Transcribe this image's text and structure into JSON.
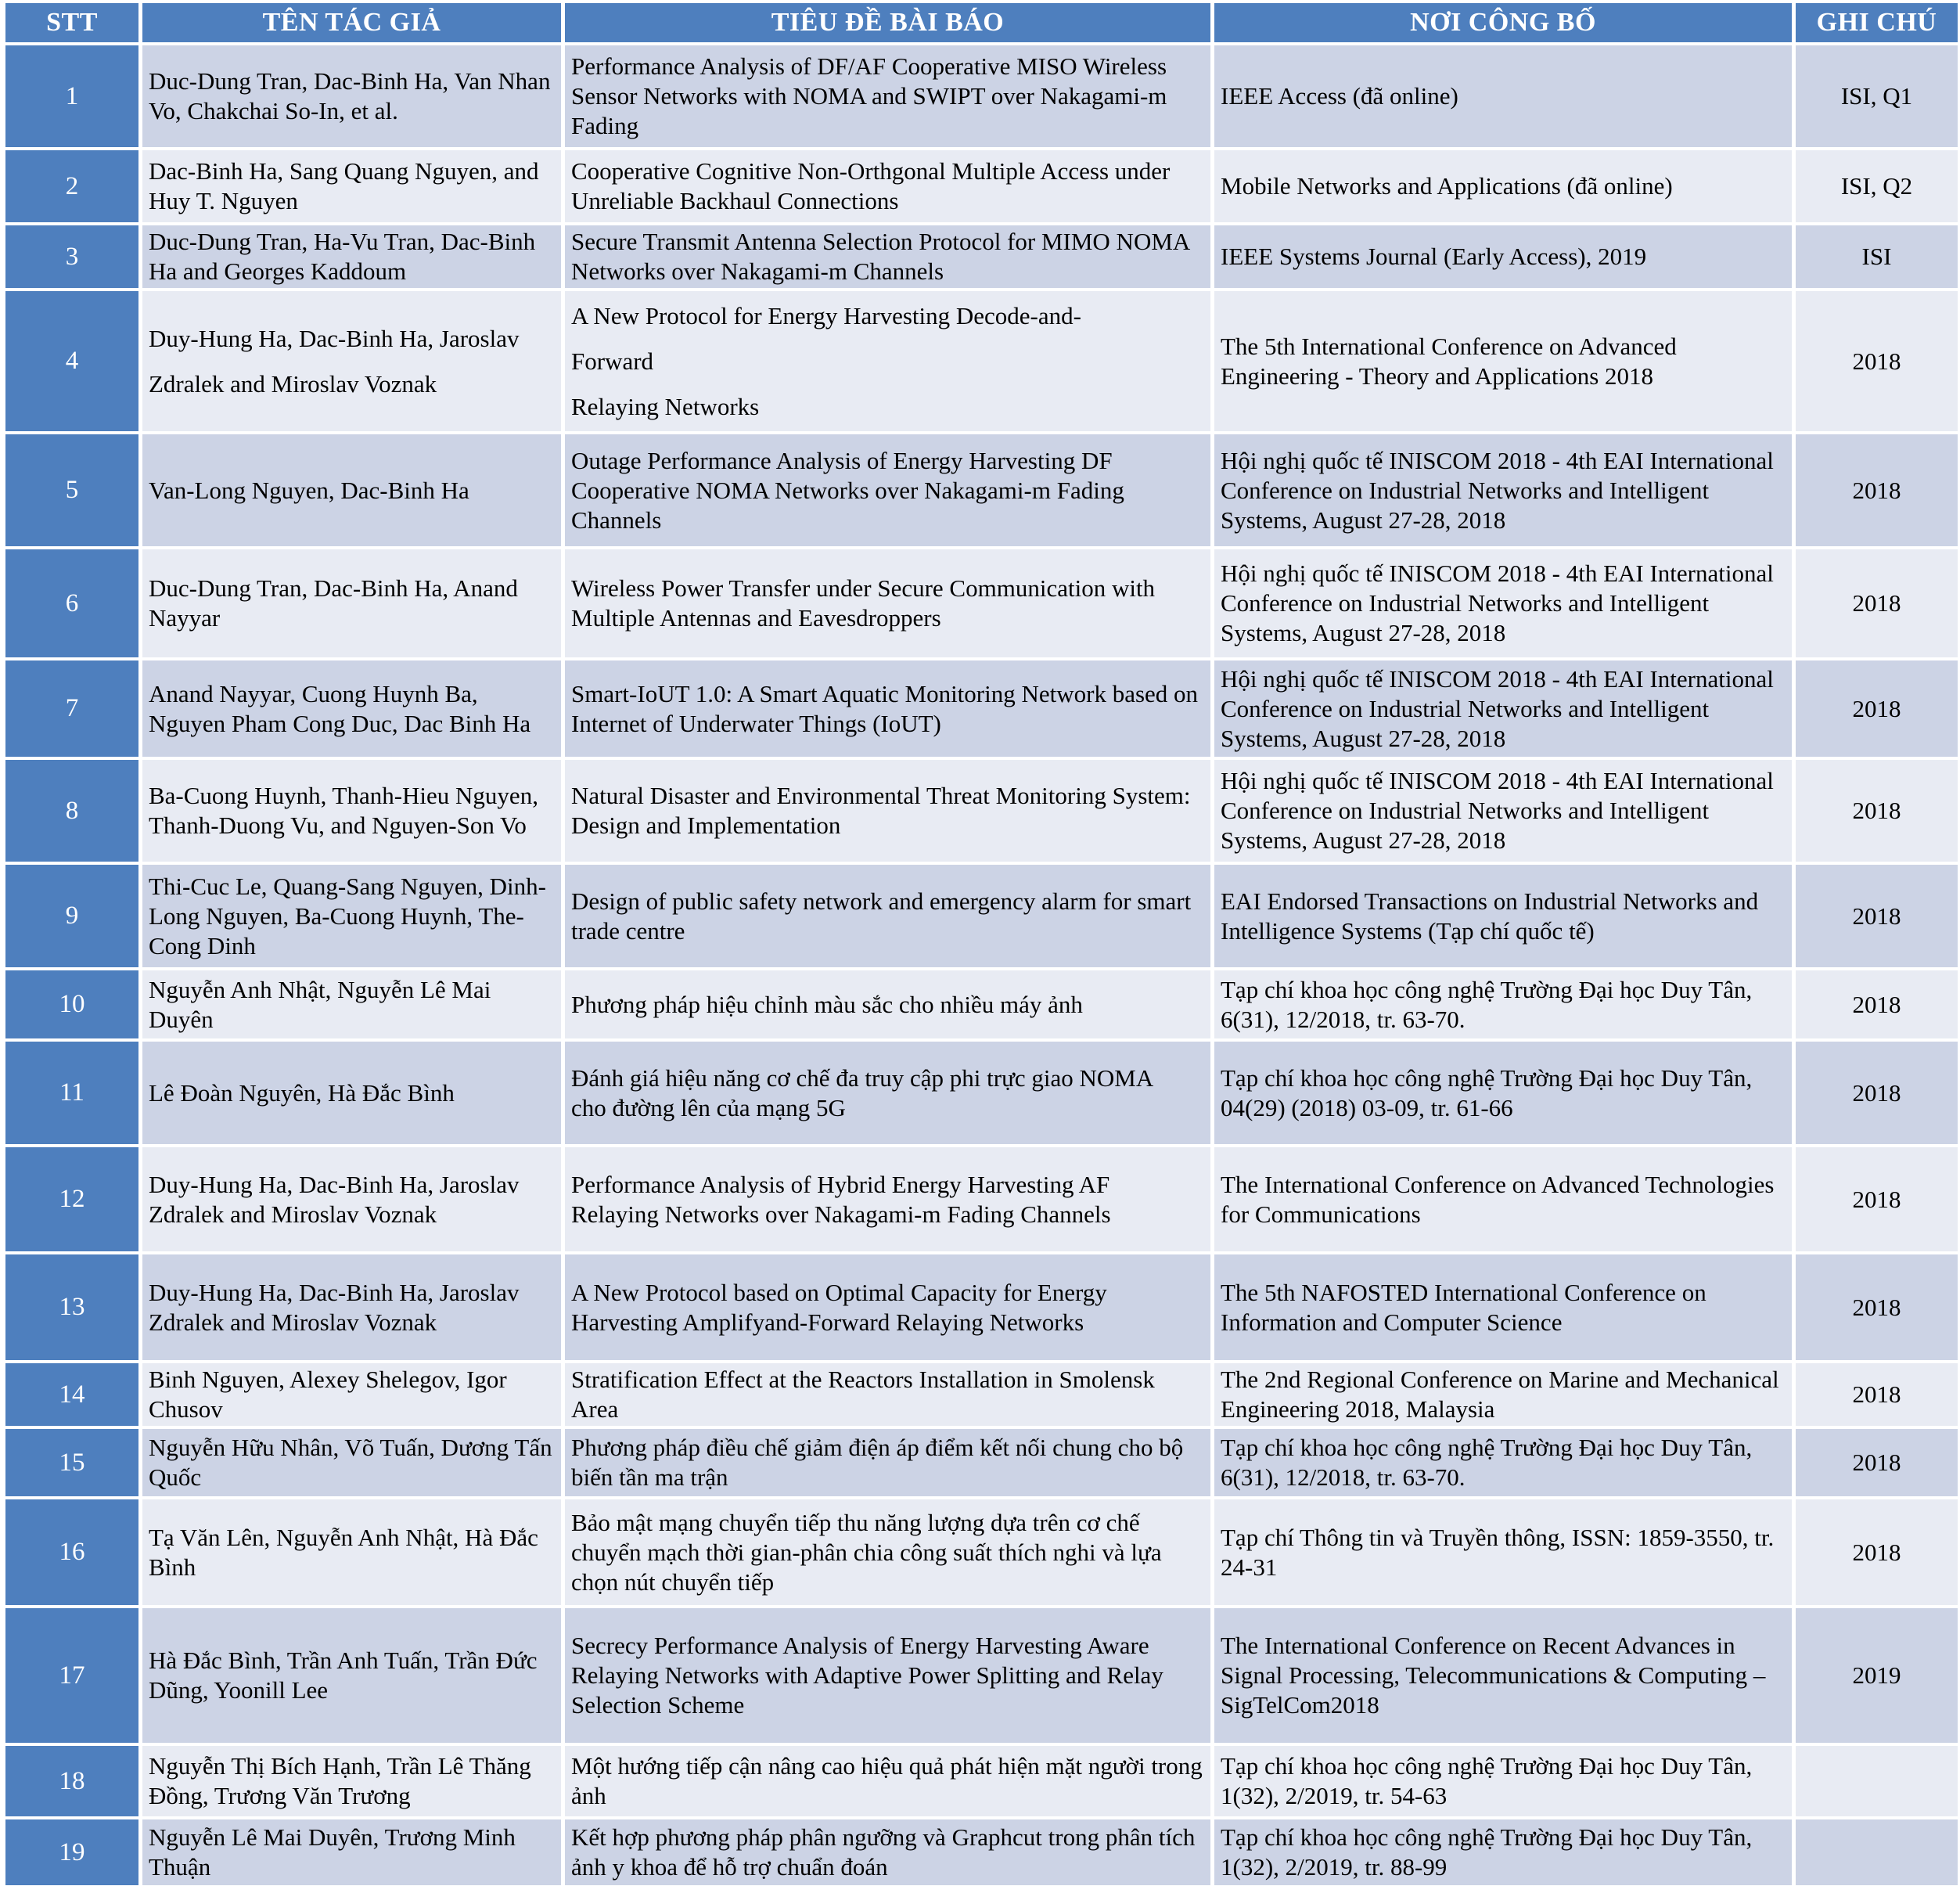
{
  "table": {
    "headers": {
      "stt": "STT",
      "authors": "TÊN TÁC GIẢ",
      "title": "TIÊU ĐỀ BÀI BÁO",
      "venue": "NƠI CÔNG BỐ",
      "note": "GHI CHÚ"
    },
    "rows": [
      {
        "stt": "1",
        "authors": "Duc-Dung Tran, Dac-Binh Ha, Van Nhan Vo, Chakchai So-In, et al.",
        "title": "Performance Analysis of DF/AF Cooperative MISO Wireless Sensor Networks with NOMA and SWIPT over Nakagami-m Fading",
        "venue": "IEEE Access (đã online)",
        "note": "ISI, Q1"
      },
      {
        "stt": "2",
        "authors": "Dac-Binh Ha, Sang Quang Nguyen, and Huy T. Nguyen",
        "title": "Cooperative Cognitive Non-Orthgonal Multiple Access under Unreliable Backhaul Connections",
        "venue": "Mobile Networks and Applications (đã online)",
        "note": "ISI, Q2"
      },
      {
        "stt": "3",
        "authors": "Duc-Dung Tran, Ha-Vu Tran, Dac-Binh Ha and Georges Kaddoum",
        "title": "Secure Transmit Antenna Selection Protocol for MIMO NOMA Networks over Nakagami-m Channels",
        "venue": "IEEE Systems Journal (Early Access), 2019",
        "note": "ISI"
      },
      {
        "stt": "4",
        "authors": "Duy-Hung Ha, Dac-Binh Ha, Jaroslav Zdralek and Miroslav Voznak",
        "title": "A New Protocol for Energy Harvesting Decode-and-\nForward\nRelaying Networks",
        "venue": "The 5th International Conference on Advanced Engineering - Theory and Applications 2018",
        "note": "2018"
      },
      {
        "stt": "5",
        "authors": "Van-Long Nguyen, Dac-Binh Ha",
        "title": "Outage Performance Analysis of Energy Harvesting DF Cooperative NOMA Networks over Nakagami-m Fading Channels",
        "venue": "Hội nghị quốc tế INISCOM 2018 - 4th EAI International Conference on Industrial Networks and Intelligent Systems, August 27-28, 2018",
        "note": "2018"
      },
      {
        "stt": "6",
        "authors": "Duc-Dung Tran, Dac-Binh Ha, Anand Nayyar",
        "title": "Wireless Power Transfer under Secure Communication with Multiple Antennas and Eavesdroppers",
        "venue": "Hội nghị quốc tế INISCOM 2018 - 4th EAI International Conference on Industrial Networks and Intelligent Systems, August 27-28, 2018",
        "note": "2018"
      },
      {
        "stt": "7",
        "authors": "Anand Nayyar, Cuong Huynh Ba, Nguyen Pham Cong Duc, Dac Binh Ha",
        "title": "Smart-IoUT 1.0: A Smart Aquatic Monitoring Network based on Internet of Underwater Things (IoUT)",
        "venue": "Hội nghị quốc tế INISCOM 2018 - 4th EAI International Conference on Industrial Networks and Intelligent Systems, August 27-28, 2018",
        "note": "2018"
      },
      {
        "stt": "8",
        "authors": "Ba-Cuong Huynh, Thanh-Hieu Nguyen, Thanh-Duong Vu, and Nguyen-Son Vo",
        "title": "Natural Disaster and Environmental Threat Monitoring System: Design and Implementation",
        "venue": "Hội nghị quốc tế INISCOM 2018 - 4th EAI International Conference on Industrial Networks and Intelligent Systems, August 27-28, 2018",
        "note": "2018"
      },
      {
        "stt": "9",
        "authors": "Thi-Cuc Le, Quang-Sang Nguyen, Dinh-Long Nguyen, Ba-Cuong Huynh, The-Cong Dinh",
        "title": "Design of public safety network and emergency alarm for smart trade centre",
        "venue": "EAI Endorsed Transactions on Industrial Networks and Intelligence Systems (Tạp chí quốc tế)",
        "note": "2018"
      },
      {
        "stt": "10",
        "authors": "Nguyễn Anh Nhật, Nguyễn Lê Mai Duyên",
        "title": "Phương pháp hiệu chỉnh màu sắc cho nhiều máy ảnh",
        "venue": "Tạp chí khoa học công nghệ Trường Đại học Duy Tân, 6(31), 12/2018, tr. 63-70.",
        "note": "2018"
      },
      {
        "stt": "11",
        "authors": "Lê Đoàn Nguyên, Hà Đắc Bình",
        "title": "Đánh giá hiệu năng cơ chế đa truy cập phi trực giao NOMA\ncho đường lên của mạng 5G",
        "venue": "Tạp chí khoa học công nghệ Trường Đại học Duy Tân, 04(29) (2018) 03-09, tr. 61-66",
        "note": "2018"
      },
      {
        "stt": "12",
        "authors": "Duy-Hung Ha, Dac-Binh Ha, Jaroslav Zdralek and Miroslav Voznak",
        "title": "Performance Analysis of Hybrid Energy Harvesting AF Relaying Networks over Nakagami-m Fading Channels",
        "venue": "The International Conference on Advanced Technologies for Communications",
        "note": "2018"
      },
      {
        "stt": "13",
        "authors": "Duy-Hung Ha, Dac-Binh Ha, Jaroslav Zdralek and Miroslav Voznak",
        "title": "A New Protocol based on Optimal Capacity for Energy Harvesting Amplifyand-Forward Relaying Networks",
        "venue": "The 5th NAFOSTED International Conference on Information and Computer Science",
        "note": "2018"
      },
      {
        "stt": "14",
        "authors": "Binh Nguyen, Alexey Shelegov, Igor Chusov",
        "title": "Stratification Effect at the Reactors Installation in Smolensk Area",
        "venue": "The 2nd Regional Conference on Marine and Mechanical Engineering 2018, Malaysia",
        "note": "2018"
      },
      {
        "stt": "15",
        "authors": "Nguyễn Hữu Nhân, Võ Tuấn, Dương Tấn Quốc",
        "title": "Phương pháp điều chế giảm điện áp điểm kết nối chung cho bộ biến tần ma trận",
        "venue": "Tạp chí khoa học công nghệ Trường Đại học Duy Tân, 6(31), 12/2018, tr. 63-70.",
        "note": "2018"
      },
      {
        "stt": "16",
        "authors": "Tạ Văn Lên, Nguyễn Anh Nhật, Hà Đắc Bình",
        "title": "Bảo mật mạng chuyển tiếp thu năng lượng dựa trên cơ chế chuyển mạch thời gian-phân chia công suất thích nghi và lựa chọn nút chuyển tiếp",
        "venue": "Tạp chí Thông tin và Truyền thông, ISSN: 1859-3550, tr. 24-31",
        "note": "2018"
      },
      {
        "stt": "17",
        "authors": "Hà Đắc Bình, Trần Anh Tuấn, Trần Đức Dũng, Yoonill Lee",
        "title": "Secrecy Performance Analysis of Energy Harvesting Aware Relaying Networks with Adaptive Power Splitting and Relay Selection Scheme",
        "venue": "The International Conference on Recent Advances in Signal Processing, Telecommunications & Computing – SigTelCom2018",
        "note": "2019"
      },
      {
        "stt": "18",
        "authors": "Nguyễn Thị Bích Hạnh, Trần Lê Thăng Đồng, Trương Văn Trương",
        "title": "Một hướng tiếp cận nâng cao hiệu quả phát hiện mặt người trong ảnh",
        "venue": "Tạp chí khoa học công nghệ Trường Đại học Duy Tân, 1(32), 2/2019, tr. 54-63",
        "note": ""
      },
      {
        "stt": "19",
        "authors": "Nguyễn Lê Mai Duyên, Trương Minh Thuận",
        "title": "Kết hợp phương pháp phân ngưỡng và Graphcut trong phân tích ảnh y khoa để hỗ trợ chuẩn đoán",
        "venue": "Tạp chí khoa học công nghệ Trường Đại học Duy Tân, 1(32), 2/2019, tr. 88-99",
        "note": ""
      }
    ],
    "accent_color": "#4e7fbe",
    "band_color_dark": "#ccd3e5",
    "band_color_light": "#e8ebf3"
  }
}
